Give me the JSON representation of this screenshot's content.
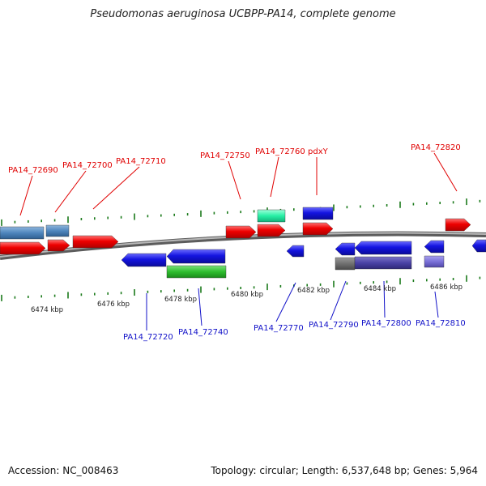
{
  "title": "Pseudomonas aeruginosa UCBPP-PA14, complete genome",
  "footer": {
    "accession": "Accession: NC_008463",
    "summary": "Topology: circular; Length: 6,537,648 bp; Genes: 5,964"
  },
  "kbp_labels": [
    {
      "text": "6474 kbp"
    },
    {
      "text": "6476 kbp"
    },
    {
      "text": "6478 kbp"
    },
    {
      "text": "6480 kbp"
    },
    {
      "text": "6482 kbp"
    },
    {
      "text": "6484 kbp"
    },
    {
      "text": "6486 kbp"
    }
  ],
  "forward_labels": [
    {
      "text": "PA14_72690"
    },
    {
      "text": "PA14_72700"
    },
    {
      "text": "PA14_72710"
    },
    {
      "text": "PA14_72750"
    },
    {
      "text": "PA14_72760"
    },
    {
      "text": "pdxY"
    },
    {
      "text": "PA14_72820"
    }
  ],
  "reverse_labels": [
    {
      "text": "PA14_72720"
    },
    {
      "text": "PA14_72740"
    },
    {
      "text": "PA14_72770"
    },
    {
      "text": "PA14_72790"
    },
    {
      "text": "PA14_72800"
    },
    {
      "text": "PA14_72810"
    }
  ],
  "colors": {
    "forward_label": "#e00000",
    "reverse_label": "#1010c8",
    "forward_gene": "#e80000",
    "reverse_gene": "#1010d8",
    "tick": "#1a7a1a",
    "backbone": "#8a8a8a"
  }
}
